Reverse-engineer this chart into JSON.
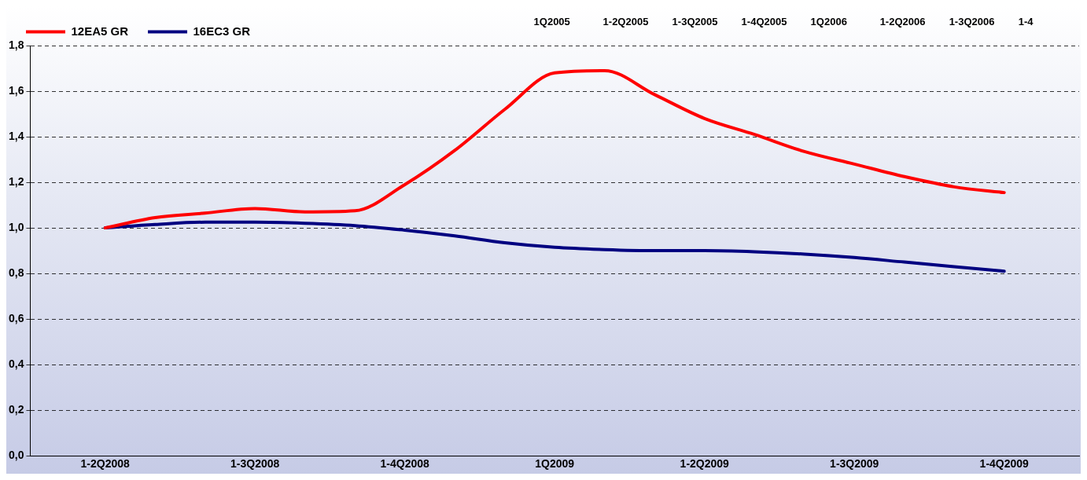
{
  "chart_data": {
    "type": "line",
    "categories": [
      "1-2Q2008",
      null,
      null,
      "1-3Q2008",
      null,
      null,
      "1-4Q2008",
      null,
      null,
      "1Q2009",
      null,
      null,
      "1-2Q2009",
      null,
      null,
      "1-3Q2009",
      null,
      null,
      "1-4Q2009"
    ],
    "series": [
      {
        "name": "12EA5 GR",
        "color": "#ff0000",
        "values": [
          1.0,
          1.045,
          1.065,
          1.085,
          1.07,
          1.075,
          1.19,
          1.34,
          1.52,
          1.68,
          1.69,
          1.585,
          1.48,
          1.41,
          1.335,
          1.28,
          1.225,
          1.18,
          1.155
        ]
      },
      {
        "name": "16EC3 GR",
        "color": "#000080",
        "values": [
          1.0,
          1.015,
          1.025,
          1.025,
          1.02,
          1.01,
          0.99,
          0.965,
          0.935,
          0.915,
          0.905,
          0.9,
          0.9,
          0.895,
          0.885,
          0.87,
          0.85,
          0.83,
          0.81
        ]
      }
    ],
    "ylim": [
      0,
      1.8
    ],
    "yticks": [
      {
        "value": 0,
        "label": "0,0"
      },
      {
        "value": 0.2,
        "label": "0,2"
      },
      {
        "value": 0.4,
        "label": "0,4"
      },
      {
        "value": 0.6,
        "label": "0,6"
      },
      {
        "value": 0.8,
        "label": "0,8"
      },
      {
        "value": 1.0,
        "label": "1,0"
      },
      {
        "value": 1.2,
        "label": "1,2"
      },
      {
        "value": 1.4,
        "label": "1,4"
      },
      {
        "value": 1.6,
        "label": "1,6"
      },
      {
        "value": 1.8,
        "label": "1,8"
      }
    ],
    "grid": "y",
    "legend": "top left",
    "marker": "none",
    "line_style": "solid",
    "annotations": [
      "1Q2005",
      "1-2Q2005",
      "1-3Q2005",
      "1-4Q2005",
      "1Q2006",
      "1-2Q2006",
      "1-3Q2006",
      "1-4"
    ]
  }
}
